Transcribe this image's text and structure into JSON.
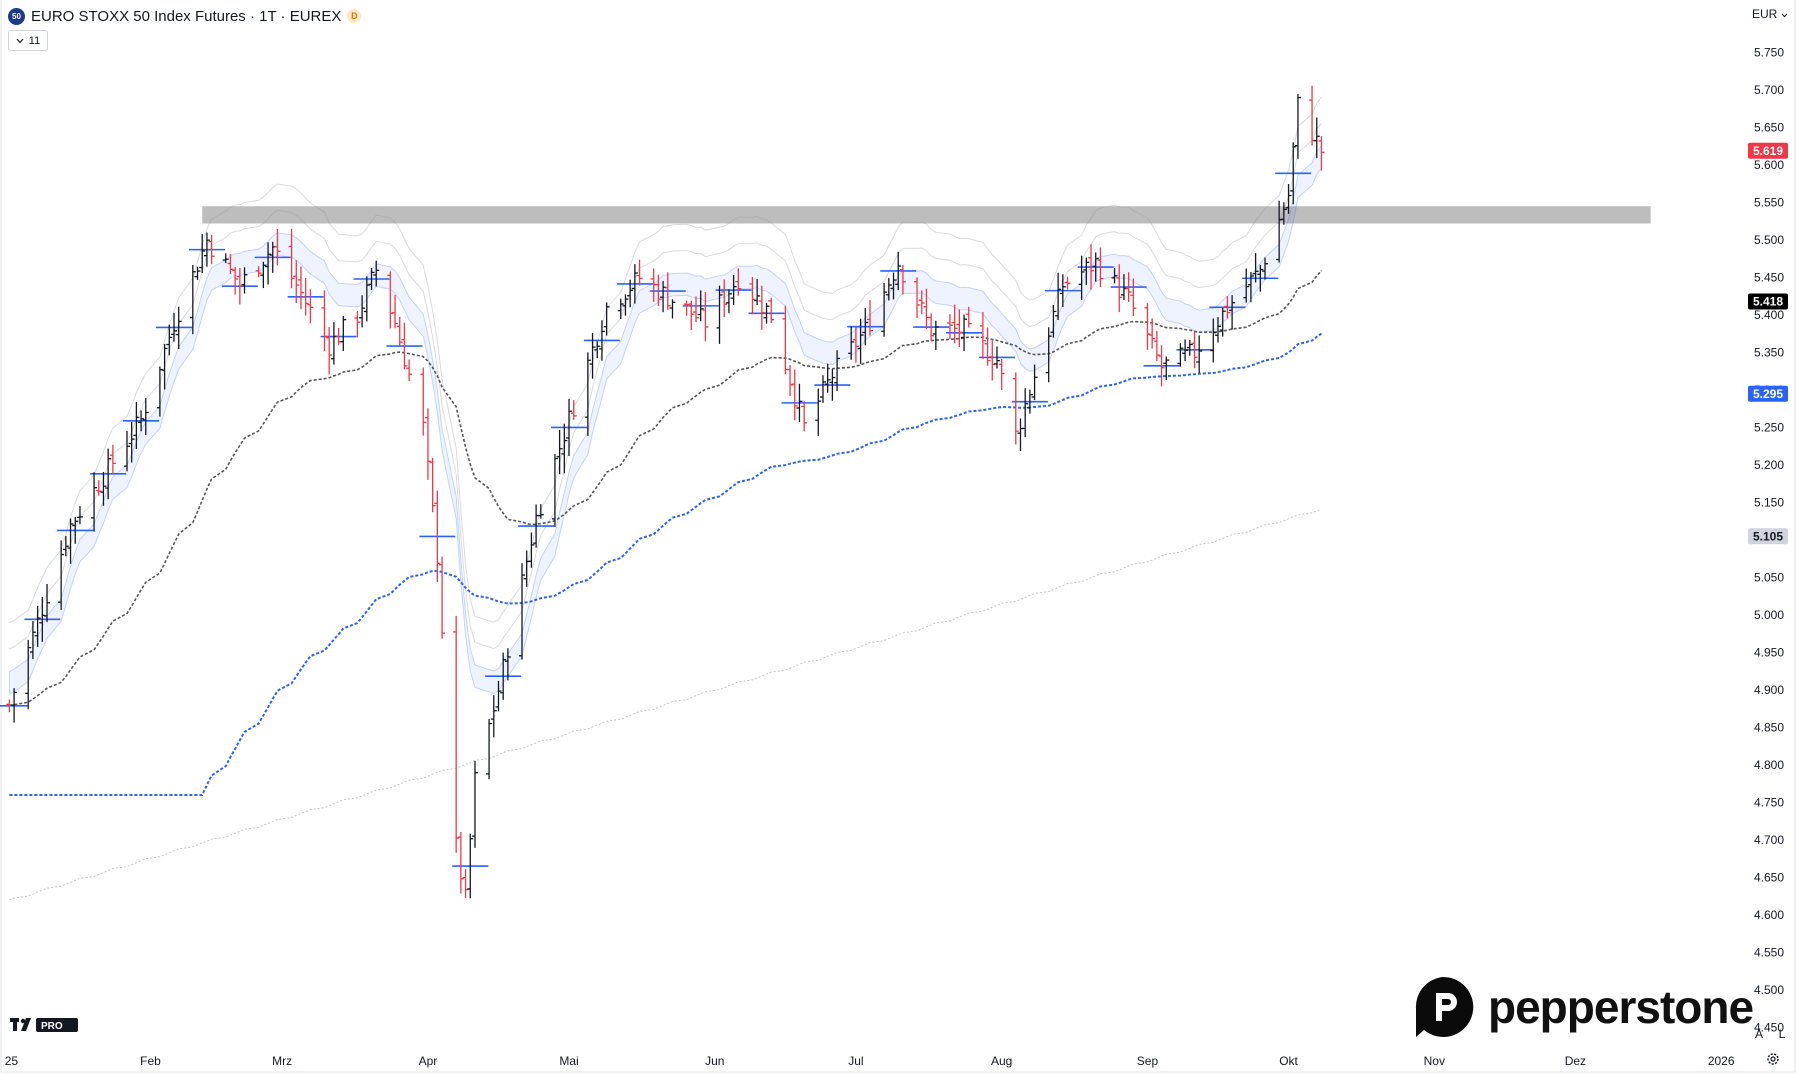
{
  "header": {
    "symbol_badge": "50",
    "title": "EURO STOXX 50 Index Futures · 1T · EUREX",
    "data_badge": "D",
    "indicator_toggle_count": "11"
  },
  "axis": {
    "currency": "EUR",
    "auto_label": "A",
    "log_label": "L"
  },
  "logos": {
    "brand": "pepperstone"
  },
  "chart_data": {
    "type": "bar",
    "style": "ohlc-bars",
    "x_axis": {
      "type": "date",
      "range": [
        "2024-12-31",
        "2026-01-05"
      ],
      "ticks": [
        {
          "date": "2025-01-01",
          "label": "25"
        },
        {
          "date": "2025-02-01",
          "label": "Feb"
        },
        {
          "date": "2025-03-01",
          "label": "Mrz"
        },
        {
          "date": "2025-04-01",
          "label": "Apr"
        },
        {
          "date": "2025-05-01",
          "label": "Mai"
        },
        {
          "date": "2025-06-01",
          "label": "Jun"
        },
        {
          "date": "2025-07-01",
          "label": "Jul"
        },
        {
          "date": "2025-08-01",
          "label": "Aug"
        },
        {
          "date": "2025-09-01",
          "label": "Sep"
        },
        {
          "date": "2025-10-01",
          "label": "Okt"
        },
        {
          "date": "2025-11-01",
          "label": "Nov"
        },
        {
          "date": "2025-12-01",
          "label": "Dez"
        },
        {
          "date": "2026-01-01",
          "label": "2026"
        }
      ]
    },
    "y_axis": {
      "range": [
        4420,
        5820
      ],
      "ticks": [
        4450,
        4500,
        4550,
        4600,
        4650,
        4700,
        4750,
        4800,
        4850,
        4900,
        4950,
        5000,
        5050,
        5100,
        5150,
        5200,
        5250,
        5300,
        5350,
        5400,
        5450,
        5500,
        5550,
        5600,
        5650,
        5700,
        5750
      ],
      "tick_labels": [
        "4.450",
        "4.500",
        "4.550",
        "4.600",
        "4.650",
        "4.700",
        "4.750",
        "4.800",
        "4.850",
        "4.900",
        "4.950",
        "5.000",
        "5.050",
        "5.100",
        "5.150",
        "5.200",
        "5.250",
        "5.300",
        "5.350",
        "5.400",
        "5.450",
        "5.500",
        "5.550",
        "5.600",
        "5.650",
        "5.700",
        "5.750"
      ]
    },
    "price_labels": [
      {
        "value": 5619,
        "label": "5.619",
        "bg": "#f23645",
        "fg": "#ffffff"
      },
      {
        "value": 5418,
        "label": "5.418",
        "bg": "#000000",
        "fg": "#ffffff"
      },
      {
        "value": 5295,
        "label": "5.295",
        "bg": "#2962ff",
        "fg": "#ffffff"
      },
      {
        "value": 5105,
        "label": "5.105",
        "bg": "#d1d4dc",
        "fg": "#131722"
      }
    ],
    "resistance_zone": {
      "from": "2025-02-12",
      "to": "2025-12-17",
      "low": 5522,
      "high": 5545,
      "color": "#b2b2b2"
    },
    "colors": {
      "up": "#131722",
      "down": "#f23645",
      "ema50": "#555555",
      "ema200": "#2962ff",
      "sma_long": "#c3c6cc",
      "band": "#2962ff",
      "envelope": "#9598a1",
      "pivot": "#2962ff"
    },
    "trend_anchors": [
      [
        "2025-01-02",
        4880
      ],
      [
        "2025-01-15",
        5120
      ],
      [
        "2025-01-30",
        5260
      ],
      [
        "2025-02-06",
        5390
      ],
      [
        "2025-02-13",
        5500
      ],
      [
        "2025-02-20",
        5440
      ],
      [
        "2025-02-27",
        5490
      ],
      [
        "2025-03-04",
        5440
      ],
      [
        "2025-03-11",
        5360
      ],
      [
        "2025-03-17",
        5400
      ],
      [
        "2025-03-21",
        5460
      ],
      [
        "2025-03-25",
        5390
      ],
      [
        "2025-03-31",
        5250
      ],
      [
        "2025-04-03",
        5080
      ],
      [
        "2025-04-07",
        4690
      ],
      [
        "2025-04-09",
        4620
      ],
      [
        "2025-04-11",
        4780
      ],
      [
        "2025-04-16",
        4900
      ],
      [
        "2025-04-24",
        5130
      ],
      [
        "2025-05-02",
        5280
      ],
      [
        "2025-05-09",
        5410
      ],
      [
        "2025-05-16",
        5450
      ],
      [
        "2025-05-23",
        5420
      ],
      [
        "2025-05-30",
        5390
      ],
      [
        "2025-06-06",
        5450
      ],
      [
        "2025-06-13",
        5400
      ],
      [
        "2025-06-20",
        5250
      ],
      [
        "2025-06-26",
        5320
      ],
      [
        "2025-07-03",
        5380
      ],
      [
        "2025-07-10",
        5470
      ],
      [
        "2025-07-17",
        5380
      ],
      [
        "2025-07-24",
        5380
      ],
      [
        "2025-07-31",
        5340
      ],
      [
        "2025-08-04",
        5240
      ],
      [
        "2025-08-08",
        5320
      ],
      [
        "2025-08-14",
        5440
      ],
      [
        "2025-08-21",
        5470
      ],
      [
        "2025-08-28",
        5420
      ],
      [
        "2025-09-04",
        5330
      ],
      [
        "2025-09-11",
        5350
      ],
      [
        "2025-09-18",
        5410
      ],
      [
        "2025-09-25",
        5460
      ],
      [
        "2025-10-01",
        5560
      ],
      [
        "2025-10-03",
        5680
      ],
      [
        "2025-10-08",
        5619
      ]
    ]
  }
}
